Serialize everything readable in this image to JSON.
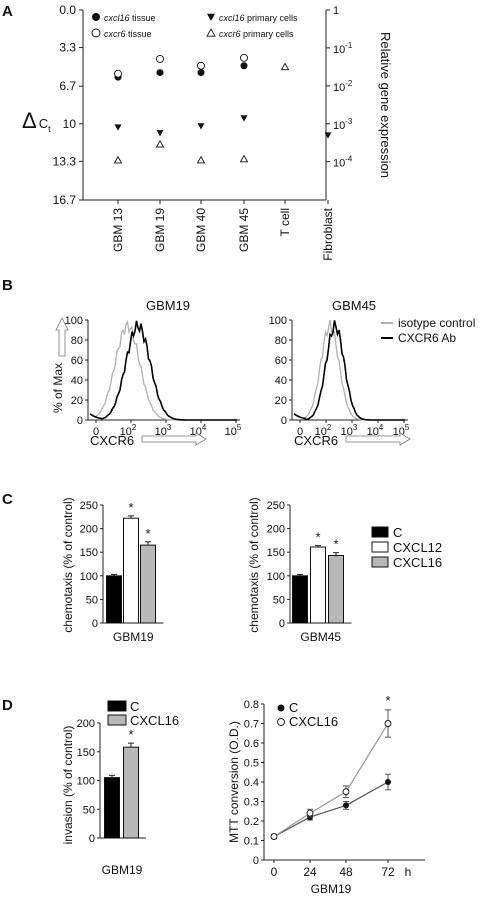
{
  "panels": {
    "A": "A",
    "B": "B",
    "C": "C",
    "D": "D"
  },
  "chart_data": [
    {
      "id": "A",
      "type": "scatter",
      "ylabel_left": "ΔCt",
      "ylabel_right": "Relative gene expression",
      "left_ticks": [
        "0.0",
        "3.3",
        "6.7",
        "10",
        "13.3",
        "16.7"
      ],
      "ylim_left": [
        16.7,
        0.0
      ],
      "right_ticks": [
        "1",
        "10^-1",
        "10^-2",
        "10^-3",
        "10^-4"
      ],
      "categories": [
        "GBM 13",
        "GBM 19",
        "GBM 40",
        "GBM 45",
        "T cell",
        "Fibroblast"
      ],
      "legend": [
        {
          "key": "cxcl16_tissue",
          "label_italic": "cxcl16",
          "label_rest": " tissue",
          "marker": "circle-filled"
        },
        {
          "key": "cxcr6_tissue",
          "label_italic": "cxcr6",
          "label_rest": " tissue",
          "marker": "circle-open"
        },
        {
          "key": "cxcl16_primary",
          "label_italic": "cxcl16",
          "label_rest": " primary cells",
          "marker": "tri-down-filled"
        },
        {
          "key": "cxcr6_primary",
          "label_italic": "cxcr6",
          "label_rest": " primary cells",
          "marker": "tri-up-open"
        }
      ],
      "series": [
        {
          "key": "cxcl16_tissue",
          "values": [
            5.9,
            5.5,
            5.5,
            4.9,
            null,
            null
          ]
        },
        {
          "key": "cxcr6_tissue",
          "values": [
            5.6,
            4.3,
            4.9,
            4.2,
            null,
            null
          ]
        },
        {
          "key": "cxcl16_primary",
          "values": [
            10.3,
            10.8,
            10.2,
            9.5,
            null,
            11.0
          ]
        },
        {
          "key": "cxcr6_primary",
          "values": [
            13.2,
            11.8,
            13.2,
            13.1,
            5.0,
            null
          ]
        }
      ]
    },
    {
      "id": "B",
      "type": "line",
      "legend": [
        {
          "name": "isotype control",
          "color": "#b0b0b0"
        },
        {
          "name": "CXCR6 Ab",
          "color": "#000000"
        }
      ],
      "subplots": [
        {
          "title": "GBM19",
          "isotype_peak_decade": 1.9,
          "antibody_peak_decade": 2.2
        },
        {
          "title": "GBM45",
          "isotype_peak_decade": 2.15,
          "antibody_peak_decade": 2.35
        }
      ],
      "ylabel": "% of Max",
      "y_ticks": [
        "0",
        "20",
        "40",
        "60",
        "80",
        "100"
      ],
      "ylim": [
        0,
        100
      ],
      "xlabel": "CXCR6",
      "x_ticks": [
        "0",
        "10²",
        "10³",
        "10⁴",
        "10⁵"
      ]
    },
    {
      "id": "C",
      "type": "bar",
      "legend": [
        {
          "name": "C",
          "color": "#000000"
        },
        {
          "name": "CXCL12",
          "color": "#ffffff"
        },
        {
          "name": "CXCL16",
          "color": "#b8b8b8"
        }
      ],
      "ylabel": "chemotaxis (% of control)",
      "subplots": [
        {
          "xlabel": "GBM19",
          "ylim": [
            0,
            250
          ],
          "ticks": [
            "0",
            "50",
            "100",
            "150",
            "200",
            "250"
          ],
          "values": [
            100,
            222,
            165
          ],
          "errors": [
            3,
            5,
            7
          ],
          "significant": [
            "",
            "*",
            "*"
          ]
        },
        {
          "xlabel": "GBM45",
          "ylim": [
            0,
            250
          ],
          "ticks": [
            "0",
            "50",
            "100",
            "150",
            "200",
            "250"
          ],
          "values": [
            100,
            161,
            143
          ],
          "errors": [
            3,
            3,
            6
          ],
          "significant": [
            "",
            "*",
            "*"
          ]
        }
      ]
    },
    {
      "id": "D1",
      "type": "bar",
      "legend": [
        {
          "name": "C",
          "color": "#000000"
        },
        {
          "name": "CXCL16",
          "color": "#b8b8b8"
        }
      ],
      "ylabel": "invasion (% of control)",
      "xlabel": "GBM19",
      "ylim": [
        0,
        200
      ],
      "ticks": [
        "0",
        "50",
        "100",
        "150",
        "200"
      ],
      "values": [
        105,
        158
      ],
      "errors": [
        4,
        7
      ],
      "significant": [
        "",
        "*"
      ]
    },
    {
      "id": "D2",
      "type": "line",
      "legend": [
        {
          "name": "C",
          "marker": "circle-filled"
        },
        {
          "name": "CXCL16",
          "marker": "circle-open"
        }
      ],
      "ylabel": "MTT conversion (O.D.)",
      "xlabel": "GBM19",
      "x_ticks": [
        "0",
        "24",
        "48",
        "72"
      ],
      "x_unit": "h",
      "x": [
        0,
        24,
        48,
        72
      ],
      "ylim": [
        0,
        0.8
      ],
      "y_ticks": [
        "0",
        "0.1",
        "0.2",
        "0.3",
        "0.4",
        "0.5",
        "0.6",
        "0.7",
        "0.8"
      ],
      "series": [
        {
          "name": "C",
          "values": [
            0.12,
            0.22,
            0.28,
            0.4
          ],
          "errors": [
            0.01,
            0.015,
            0.02,
            0.04
          ]
        },
        {
          "name": "CXCL16",
          "values": [
            0.12,
            0.24,
            0.35,
            0.7
          ],
          "errors": [
            0.01,
            0.02,
            0.03,
            0.07
          ]
        }
      ],
      "significant_at": 72,
      "significant": "*"
    }
  ]
}
